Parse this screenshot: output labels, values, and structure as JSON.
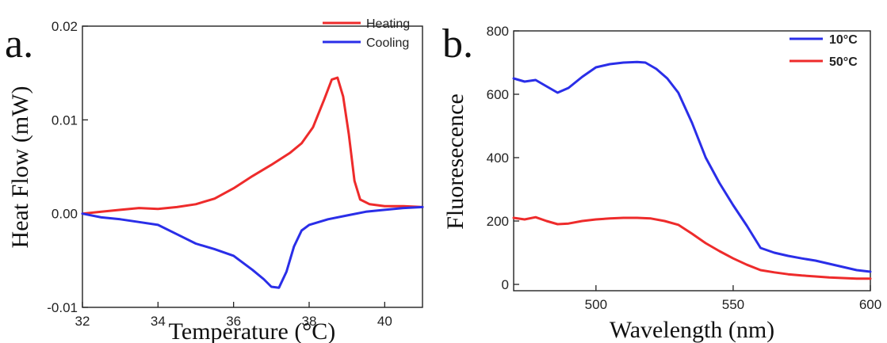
{
  "chart_data": [
    {
      "panel_label": "a.",
      "type": "line",
      "title": "",
      "xlabel": "Temperature (°C)",
      "ylabel": "Heat Flow (mW)",
      "xlim": [
        32,
        41
      ],
      "ylim": [
        -0.01,
        0.02
      ],
      "xticks": [
        32,
        34,
        36,
        38,
        40
      ],
      "yticks": [
        -0.01,
        0.0,
        0.01,
        0.02
      ],
      "ytick_labels": [
        "-0.01",
        "0.00",
        "0.01",
        "0.02"
      ],
      "grid": false,
      "legend_position": "top-right",
      "series": [
        {
          "name": "Heating",
          "color": "#ee2b2b",
          "x": [
            32.0,
            32.5,
            33.0,
            33.5,
            34.0,
            34.5,
            35.0,
            35.5,
            36.0,
            36.5,
            37.0,
            37.5,
            37.8,
            38.1,
            38.4,
            38.6,
            38.75,
            38.9,
            39.05,
            39.2,
            39.35,
            39.6,
            40.0,
            40.5,
            41.0
          ],
          "y": [
            0.0,
            0.0002,
            0.0004,
            0.0006,
            0.0005,
            0.0007,
            0.001,
            0.0016,
            0.0027,
            0.004,
            0.0052,
            0.0065,
            0.0075,
            0.0092,
            0.0122,
            0.0143,
            0.0145,
            0.0125,
            0.0085,
            0.0035,
            0.0015,
            0.001,
            0.0008,
            0.0008,
            0.0007
          ]
        },
        {
          "name": "Cooling",
          "color": "#2a2ee8",
          "x": [
            32.0,
            32.5,
            33.0,
            33.5,
            34.0,
            34.5,
            35.0,
            35.5,
            36.0,
            36.5,
            36.8,
            37.0,
            37.2,
            37.4,
            37.6,
            37.8,
            38.0,
            38.5,
            39.0,
            39.5,
            40.0,
            40.5,
            41.0
          ],
          "y": [
            0.0,
            -0.0004,
            -0.0006,
            -0.0009,
            -0.0012,
            -0.0022,
            -0.0032,
            -0.0038,
            -0.0045,
            -0.006,
            -0.007,
            -0.0078,
            -0.0079,
            -0.0062,
            -0.0035,
            -0.0018,
            -0.0012,
            -0.0006,
            -0.0002,
            0.0002,
            0.0004,
            0.0006,
            0.0007
          ]
        }
      ]
    },
    {
      "panel_label": "b.",
      "type": "line",
      "title": "",
      "xlabel": "Wavelength (nm)",
      "ylabel": "Fluoresecence",
      "xlim": [
        470,
        600
      ],
      "ylim": [
        -20,
        800
      ],
      "xticks": [
        500,
        550,
        600
      ],
      "yticks": [
        0,
        200,
        400,
        600,
        800
      ],
      "grid": false,
      "legend_position": "top-right",
      "series": [
        {
          "name": "10°C",
          "color": "#2a2ee8",
          "x": [
            470,
            474,
            478,
            482,
            486,
            490,
            495,
            500,
            505,
            510,
            515,
            518,
            522,
            526,
            530,
            535,
            540,
            545,
            550,
            555,
            560,
            565,
            570,
            575,
            580,
            585,
            590,
            595,
            600
          ],
          "y": [
            650,
            640,
            645,
            625,
            605,
            620,
            655,
            685,
            695,
            700,
            702,
            700,
            680,
            650,
            605,
            510,
            400,
            320,
            250,
            185,
            115,
            100,
            90,
            82,
            75,
            65,
            55,
            45,
            40
          ]
        },
        {
          "name": "50°C",
          "color": "#ee2b2b",
          "x": [
            470,
            474,
            478,
            482,
            486,
            490,
            495,
            500,
            505,
            510,
            515,
            520,
            525,
            530,
            535,
            540,
            545,
            550,
            555,
            560,
            565,
            570,
            575,
            580,
            585,
            590,
            595,
            600
          ],
          "y": [
            210,
            205,
            212,
            200,
            190,
            192,
            200,
            205,
            208,
            210,
            210,
            208,
            200,
            188,
            160,
            130,
            105,
            82,
            62,
            45,
            38,
            32,
            28,
            25,
            22,
            20,
            18,
            18
          ]
        }
      ]
    }
  ]
}
